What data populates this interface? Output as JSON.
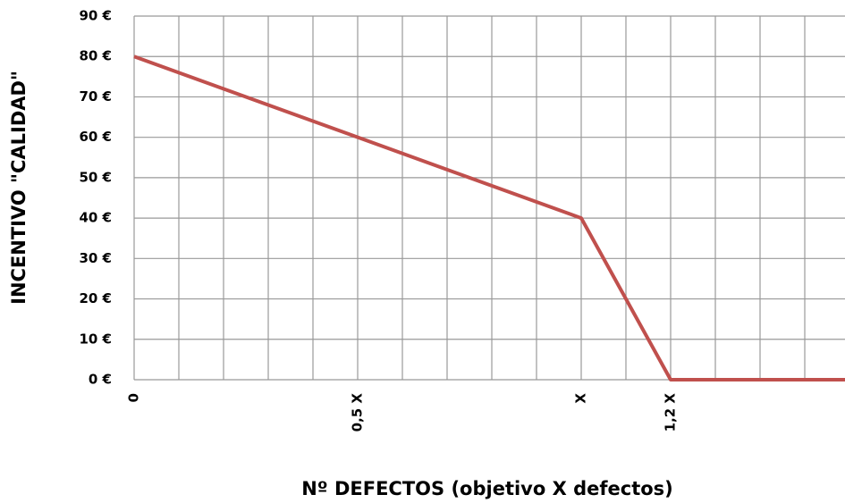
{
  "chart_data": {
    "type": "line",
    "x_label": "Nº DEFECTOS (objetivo X defectos)",
    "y_label": "INCENTIVO \"CALIDAD\"",
    "x": [
      0,
      0.5,
      1,
      1.2,
      1.59
    ],
    "series": [
      {
        "color": "#c0504d",
        "values": [
          80,
          60,
          40,
          0,
          0
        ]
      }
    ],
    "xlim": [
      0,
      1.59
    ],
    "xticks": [
      0,
      {
        "value": 0.5,
        "label": "0,5 X"
      },
      {
        "value": 1,
        "label": "X"
      },
      {
        "value": 1.2,
        "label": "1,2 X"
      }
    ],
    "xminor_ticks": [
      0.1,
      0.2,
      0.3,
      0.4,
      0.6,
      0.7,
      0.8,
      0.9,
      1.1,
      1.3,
      1.4,
      1.5
    ],
    "ylim": [
      0,
      90
    ],
    "yticks": [
      {
        "value": 0,
        "label": "0 €"
      },
      {
        "value": 10,
        "label": "10 €"
      },
      {
        "value": 20,
        "label": "20 €"
      },
      {
        "value": 30,
        "label": "30 €"
      },
      {
        "value": 40,
        "label": "40 €"
      },
      {
        "value": 50,
        "label": "50 €"
      },
      {
        "value": 60,
        "label": "60 €"
      },
      {
        "value": 70,
        "label": "70 €"
      },
      {
        "value": 80,
        "label": "80 €"
      },
      {
        "value": 90,
        "label": "90 €"
      }
    ],
    "grid": true
  }
}
